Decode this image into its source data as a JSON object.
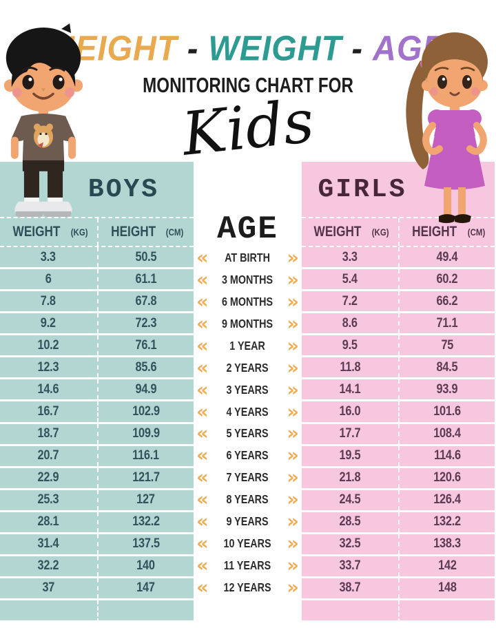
{
  "page_title": "Height Weight Age Monitoring Chart for Kids",
  "header": {
    "title_words": [
      {
        "text": "HEIGHT",
        "color": "#E9A94E"
      },
      {
        "text": "-",
        "color": "#1F1F1F"
      },
      {
        "text": "WEIGHT",
        "color": "#2E9B93"
      },
      {
        "text": "-",
        "color": "#1F1F1F"
      },
      {
        "text": "AGE",
        "color": "#A271CB"
      }
    ],
    "subtitle": "MONITORING CHART FOR",
    "script_word": "Kids"
  },
  "boys_table": {
    "title": "BOYS",
    "weight_header": "WEIGHT",
    "weight_unit": "(KG)",
    "height_header": "HEIGHT",
    "height_unit": "(CM)",
    "rows": [
      [
        "3.3",
        "50.5"
      ],
      [
        "6",
        "61.1"
      ],
      [
        "7.8",
        "67.8"
      ],
      [
        "9.2",
        "72.3"
      ],
      [
        "10.2",
        "76.1"
      ],
      [
        "12.3",
        "85.6"
      ],
      [
        "14.6",
        "94.9"
      ],
      [
        "16.7",
        "102.9"
      ],
      [
        "18.7",
        "109.9"
      ],
      [
        "20.7",
        "116.1"
      ],
      [
        "22.9",
        "121.7"
      ],
      [
        "25.3",
        "127"
      ],
      [
        "28.1",
        "132.2"
      ],
      [
        "31.4",
        "137.5"
      ],
      [
        "32.2",
        "140"
      ],
      [
        "37",
        "147"
      ]
    ]
  },
  "girls_table": {
    "title": "GIRLS",
    "weight_header": "WEIGHT",
    "weight_unit": "(KG)",
    "height_header": "HEIGHT",
    "height_unit": "(CM)",
    "rows": [
      [
        "3.3",
        "49.4"
      ],
      [
        "5.4",
        "60.2"
      ],
      [
        "7.2",
        "66.2"
      ],
      [
        "8.6",
        "71.1"
      ],
      [
        "9.5",
        "75"
      ],
      [
        "11.8",
        "84.5"
      ],
      [
        "14.1",
        "93.9"
      ],
      [
        "16.0",
        "101.6"
      ],
      [
        "17.7",
        "108.4"
      ],
      [
        "19.5",
        "114.6"
      ],
      [
        "21.8",
        "120.6"
      ],
      [
        "24.5",
        "126.4"
      ],
      [
        "28.5",
        "132.2"
      ],
      [
        "32.5",
        "138.3"
      ],
      [
        "33.7",
        "142"
      ],
      [
        "38.7",
        "148"
      ]
    ]
  },
  "age_column": {
    "title": "AGE",
    "left_chevron": "«",
    "right_chevron": "»",
    "rows": [
      "AT BIRTH",
      "3 MONTHS",
      "6 MONTHS",
      "9 MONTHS",
      "1 YEAR",
      "2 YEARS",
      "3 YEARS",
      "4 YEARS",
      "5 YEARS",
      "6 YEARS",
      "7 YEARS",
      "8 YEARS",
      "9 YEARS",
      "10 YEARS",
      "11 YEARS",
      "12 YEARS"
    ]
  },
  "colors": {
    "boys_panel": "#B2D7D3",
    "girls_panel": "#F7C6DF",
    "boys_ink": "#33535C",
    "girls_ink": "#5C3C53",
    "chevron_orange": "#F0AD58",
    "title_orange": "#E9A94E",
    "title_teal": "#2E9B93",
    "title_purple": "#A271CB",
    "separator": "#FFFFFF"
  },
  "chart_data": {
    "type": "table",
    "title": "HEIGHT - WEIGHT - AGE MONITORING CHART FOR Kids",
    "categories": [
      "AT BIRTH",
      "3 MONTHS",
      "6 MONTHS",
      "9 MONTHS",
      "1 YEAR",
      "2 YEARS",
      "3 YEARS",
      "4 YEARS",
      "5 YEARS",
      "6 YEARS",
      "7 YEARS",
      "8 YEARS",
      "9 YEARS",
      "10 YEARS",
      "11 YEARS",
      "12 YEARS"
    ],
    "series": [
      {
        "name": "Boys Weight (kg)",
        "values": [
          3.3,
          6,
          7.8,
          9.2,
          10.2,
          12.3,
          14.6,
          16.7,
          18.7,
          20.7,
          22.9,
          25.3,
          28.1,
          31.4,
          32.2,
          37
        ]
      },
      {
        "name": "Boys Height (cm)",
        "values": [
          50.5,
          61.1,
          67.8,
          72.3,
          76.1,
          85.6,
          94.9,
          102.9,
          109.9,
          116.1,
          121.7,
          127,
          132.2,
          137.5,
          140,
          147
        ]
      },
      {
        "name": "Girls Weight (kg)",
        "values": [
          3.3,
          5.4,
          7.2,
          8.6,
          9.5,
          11.8,
          14.1,
          16.0,
          17.7,
          19.5,
          21.8,
          24.5,
          28.5,
          32.5,
          33.7,
          38.7
        ]
      },
      {
        "name": "Girls Height (cm)",
        "values": [
          49.4,
          60.2,
          66.2,
          71.1,
          75,
          84.5,
          93.9,
          101.6,
          108.4,
          114.6,
          120.6,
          126.4,
          132.2,
          138.3,
          142,
          148
        ]
      }
    ]
  }
}
